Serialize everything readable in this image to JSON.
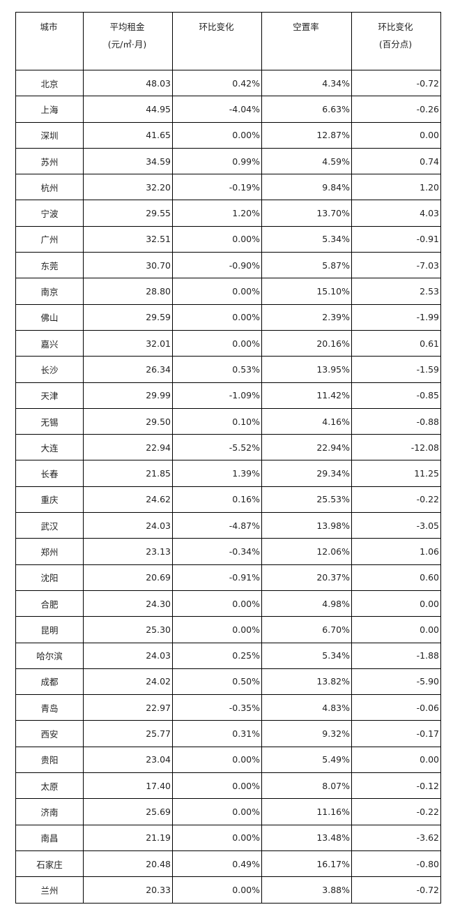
{
  "headers": [
    {
      "line1": "城市",
      "line2": ""
    },
    {
      "line1": "平均租金",
      "line2": "(元/㎡·月)"
    },
    {
      "line1": "环比变化",
      "line2": ""
    },
    {
      "line1": "空置率",
      "line2": ""
    },
    {
      "line1": "环比变化",
      "line2": "(百分点)"
    }
  ],
  "rows": [
    [
      "北京",
      "48.03",
      "0.42%",
      "4.34%",
      "-0.72"
    ],
    [
      "上海",
      "44.95",
      "-4.04%",
      "6.63%",
      "-0.26"
    ],
    [
      "深圳",
      "41.65",
      "0.00%",
      "12.87%",
      "0.00"
    ],
    [
      "苏州",
      "34.59",
      "0.99%",
      "4.59%",
      "0.74"
    ],
    [
      "杭州",
      "32.20",
      "-0.19%",
      "9.84%",
      "1.20"
    ],
    [
      "宁波",
      "29.55",
      "1.20%",
      "13.70%",
      "4.03"
    ],
    [
      "广州",
      "32.51",
      "0.00%",
      "5.34%",
      "-0.91"
    ],
    [
      "东莞",
      "30.70",
      "-0.90%",
      "5.87%",
      "-7.03"
    ],
    [
      "南京",
      "28.80",
      "0.00%",
      "15.10%",
      "2.53"
    ],
    [
      "佛山",
      "29.59",
      "0.00%",
      "2.39%",
      "-1.99"
    ],
    [
      "嘉兴",
      "32.01",
      "0.00%",
      "20.16%",
      "0.61"
    ],
    [
      "长沙",
      "26.34",
      "0.53%",
      "13.95%",
      "-1.59"
    ],
    [
      "天津",
      "29.99",
      "-1.09%",
      "11.42%",
      "-0.85"
    ],
    [
      "无锡",
      "29.50",
      "0.10%",
      "4.16%",
      "-0.88"
    ],
    [
      "大连",
      "22.94",
      "-5.52%",
      "22.94%",
      "-12.08"
    ],
    [
      "长春",
      "21.85",
      "1.39%",
      "29.34%",
      "11.25"
    ],
    [
      "重庆",
      "24.62",
      "0.16%",
      "25.53%",
      "-0.22"
    ],
    [
      "武汉",
      "24.03",
      "-4.87%",
      "13.98%",
      "-3.05"
    ],
    [
      "郑州",
      "23.13",
      "-0.34%",
      "12.06%",
      "1.06"
    ],
    [
      "沈阳",
      "20.69",
      "-0.91%",
      "20.37%",
      "0.60"
    ],
    [
      "合肥",
      "24.30",
      "0.00%",
      "4.98%",
      "0.00"
    ],
    [
      "昆明",
      "25.30",
      "0.00%",
      "6.70%",
      "0.00"
    ],
    [
      "哈尔滨",
      "24.03",
      "0.25%",
      "5.34%",
      "-1.88"
    ],
    [
      "成都",
      "24.02",
      "0.50%",
      "13.82%",
      "-5.90"
    ],
    [
      "青岛",
      "22.97",
      "-0.35%",
      "4.83%",
      "-0.06"
    ],
    [
      "西安",
      "25.77",
      "0.31%",
      "9.32%",
      "-0.17"
    ],
    [
      "贵阳",
      "23.04",
      "0.00%",
      "5.49%",
      "0.00"
    ],
    [
      "太原",
      "17.40",
      "0.00%",
      "8.07%",
      "-0.12"
    ],
    [
      "济南",
      "25.69",
      "0.00%",
      "11.16%",
      "-0.22"
    ],
    [
      "南昌",
      "21.19",
      "0.00%",
      "13.48%",
      "-3.62"
    ],
    [
      "石家庄",
      "20.48",
      "0.49%",
      "16.17%",
      "-0.80"
    ],
    [
      "兰州",
      "20.33",
      "0.00%",
      "3.88%",
      "-0.72"
    ]
  ]
}
